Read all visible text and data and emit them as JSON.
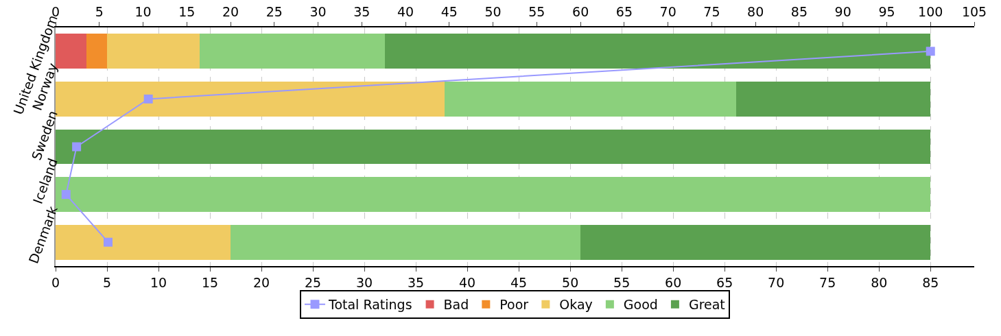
{
  "chart_data": {
    "type": "bar",
    "orientation": "horizontal",
    "stacked": true,
    "categories": [
      "United Kingdom",
      "Norway",
      "Sweden",
      "Iceland",
      "Denmark"
    ],
    "series": [
      {
        "name": "Total Ratings",
        "type": "line",
        "axis": "x2",
        "marker": "square",
        "color": "#9999ff",
        "values": [
          100,
          10.6,
          2.4,
          1.2,
          6
        ]
      },
      {
        "name": "Bad",
        "color": "#e05a5a",
        "values": [
          3,
          null,
          null,
          null,
          null
        ]
      },
      {
        "name": "Poor",
        "color": "#f28e2b",
        "values": [
          2,
          null,
          null,
          null,
          null
        ]
      },
      {
        "name": "Okay",
        "color": "#f0cb62",
        "values": [
          9,
          37.8,
          null,
          null,
          17
        ]
      },
      {
        "name": "Good",
        "color": "#8bd07c",
        "values": [
          18,
          28.3,
          null,
          85,
          34
        ]
      },
      {
        "name": "Great",
        "color": "#5ba150",
        "values": [
          53,
          18.9,
          85,
          null,
          34
        ]
      }
    ],
    "xlim": [
      0,
      89.25
    ],
    "xticks": [
      0,
      5,
      10,
      15,
      20,
      25,
      30,
      35,
      40,
      45,
      50,
      55,
      60,
      65,
      70,
      75,
      80,
      85
    ],
    "x2lim": [
      0,
      105
    ],
    "x2ticks": [
      0,
      5,
      10,
      15,
      20,
      25,
      30,
      35,
      40,
      45,
      50,
      55,
      60,
      65,
      70,
      75,
      80,
      85,
      90,
      95,
      100,
      105
    ],
    "grid": "x",
    "legend": "bottom"
  }
}
